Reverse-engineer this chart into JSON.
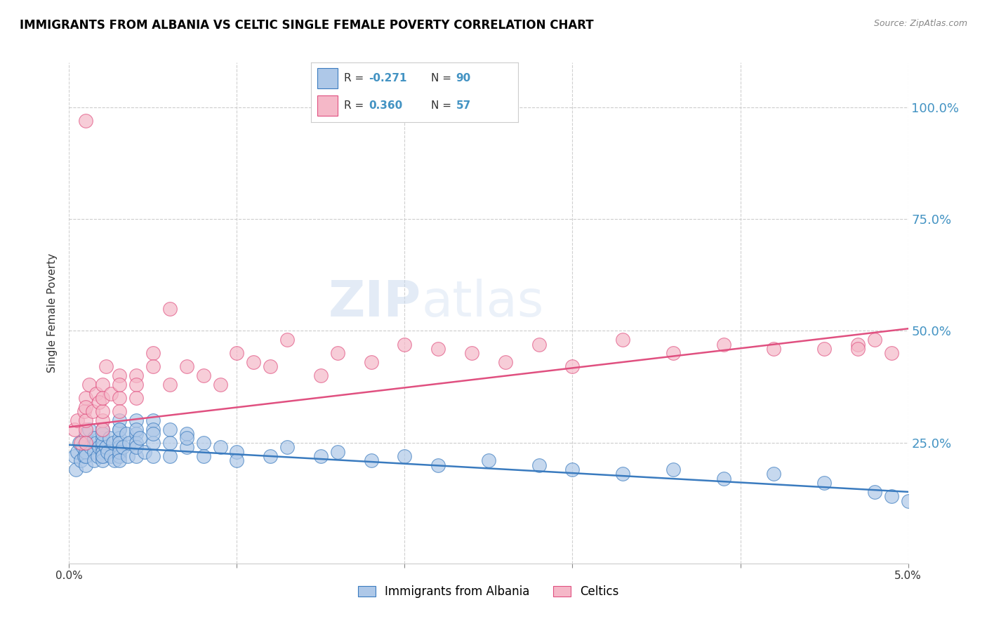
{
  "title": "IMMIGRANTS FROM ALBANIA VS CELTIC SINGLE FEMALE POVERTY CORRELATION CHART",
  "source": "Source: ZipAtlas.com",
  "ylabel": "Single Female Poverty",
  "legend_label1": "Immigrants from Albania",
  "legend_label2": "Celtics",
  "watermark": "ZIPatlas",
  "color_blue": "#aec8e8",
  "color_blue_line": "#3a7bbf",
  "color_pink": "#f5b8c8",
  "color_pink_line": "#e05080",
  "color_right_axis": "#4393c3",
  "ytick_labels": [
    "25.0%",
    "50.0%",
    "75.0%",
    "100.0%"
  ],
  "ytick_values": [
    0.25,
    0.5,
    0.75,
    1.0
  ],
  "xlim": [
    0.0,
    0.05
  ],
  "ylim": [
    -0.02,
    1.1
  ],
  "albania_x": [
    0.0003,
    0.0004,
    0.0005,
    0.0006,
    0.0007,
    0.0008,
    0.0009,
    0.001,
    0.001,
    0.001,
    0.001,
    0.001,
    0.0012,
    0.0013,
    0.0015,
    0.0015,
    0.0015,
    0.0016,
    0.0017,
    0.0018,
    0.002,
    0.002,
    0.002,
    0.002,
    0.002,
    0.002,
    0.002,
    0.002,
    0.002,
    0.0022,
    0.0023,
    0.0024,
    0.0025,
    0.0026,
    0.0027,
    0.003,
    0.003,
    0.003,
    0.003,
    0.003,
    0.003,
    0.003,
    0.003,
    0.003,
    0.0032,
    0.0034,
    0.0035,
    0.0036,
    0.004,
    0.004,
    0.004,
    0.004,
    0.004,
    0.004,
    0.0042,
    0.0045,
    0.005,
    0.005,
    0.005,
    0.005,
    0.005,
    0.006,
    0.006,
    0.006,
    0.007,
    0.007,
    0.007,
    0.008,
    0.008,
    0.009,
    0.01,
    0.01,
    0.012,
    0.013,
    0.015,
    0.016,
    0.018,
    0.02,
    0.022,
    0.025,
    0.028,
    0.03,
    0.033,
    0.036,
    0.039,
    0.042,
    0.045,
    0.048,
    0.049,
    0.05
  ],
  "albania_y": [
    0.22,
    0.19,
    0.23,
    0.25,
    0.21,
    0.24,
    0.22,
    0.27,
    0.23,
    0.25,
    0.2,
    0.22,
    0.28,
    0.24,
    0.26,
    0.23,
    0.21,
    0.25,
    0.22,
    0.24,
    0.26,
    0.24,
    0.22,
    0.28,
    0.23,
    0.21,
    0.25,
    0.27,
    0.22,
    0.24,
    0.23,
    0.26,
    0.22,
    0.25,
    0.21,
    0.28,
    0.26,
    0.24,
    0.22,
    0.3,
    0.25,
    0.23,
    0.28,
    0.21,
    0.24,
    0.27,
    0.22,
    0.25,
    0.3,
    0.27,
    0.25,
    0.22,
    0.28,
    0.24,
    0.26,
    0.23,
    0.3,
    0.28,
    0.25,
    0.22,
    0.27,
    0.28,
    0.25,
    0.22,
    0.27,
    0.24,
    0.26,
    0.25,
    0.22,
    0.24,
    0.23,
    0.21,
    0.22,
    0.24,
    0.22,
    0.23,
    0.21,
    0.22,
    0.2,
    0.21,
    0.2,
    0.19,
    0.18,
    0.19,
    0.17,
    0.18,
    0.16,
    0.14,
    0.13,
    0.12
  ],
  "celtic_x": [
    0.0003,
    0.0005,
    0.0007,
    0.0009,
    0.001,
    0.001,
    0.001,
    0.001,
    0.0012,
    0.0014,
    0.0016,
    0.0018,
    0.002,
    0.002,
    0.002,
    0.002,
    0.002,
    0.0022,
    0.0025,
    0.003,
    0.003,
    0.003,
    0.003,
    0.004,
    0.004,
    0.004,
    0.005,
    0.005,
    0.006,
    0.006,
    0.007,
    0.008,
    0.009,
    0.01,
    0.011,
    0.012,
    0.013,
    0.015,
    0.016,
    0.018,
    0.02,
    0.022,
    0.024,
    0.026,
    0.028,
    0.03,
    0.033,
    0.036,
    0.039,
    0.042,
    0.045,
    0.047,
    0.048,
    0.049,
    0.001,
    0.001,
    0.047
  ],
  "celtic_y": [
    0.28,
    0.3,
    0.25,
    0.32,
    0.35,
    0.28,
    0.3,
    0.33,
    0.38,
    0.32,
    0.36,
    0.34,
    0.3,
    0.38,
    0.28,
    0.32,
    0.35,
    0.42,
    0.36,
    0.4,
    0.35,
    0.38,
    0.32,
    0.4,
    0.38,
    0.35,
    0.45,
    0.42,
    0.55,
    0.38,
    0.42,
    0.4,
    0.38,
    0.45,
    0.43,
    0.42,
    0.48,
    0.4,
    0.45,
    0.43,
    0.47,
    0.46,
    0.45,
    0.43,
    0.47,
    0.42,
    0.48,
    0.45,
    0.47,
    0.46,
    0.46,
    0.47,
    0.48,
    0.45,
    0.97,
    0.25,
    0.46
  ],
  "albania_trend_x": [
    0.0,
    0.05
  ],
  "albania_trend_y": [
    0.245,
    0.14
  ],
  "celtic_trend_x": [
    0.0,
    0.05
  ],
  "celtic_trend_y": [
    0.285,
    0.505
  ]
}
